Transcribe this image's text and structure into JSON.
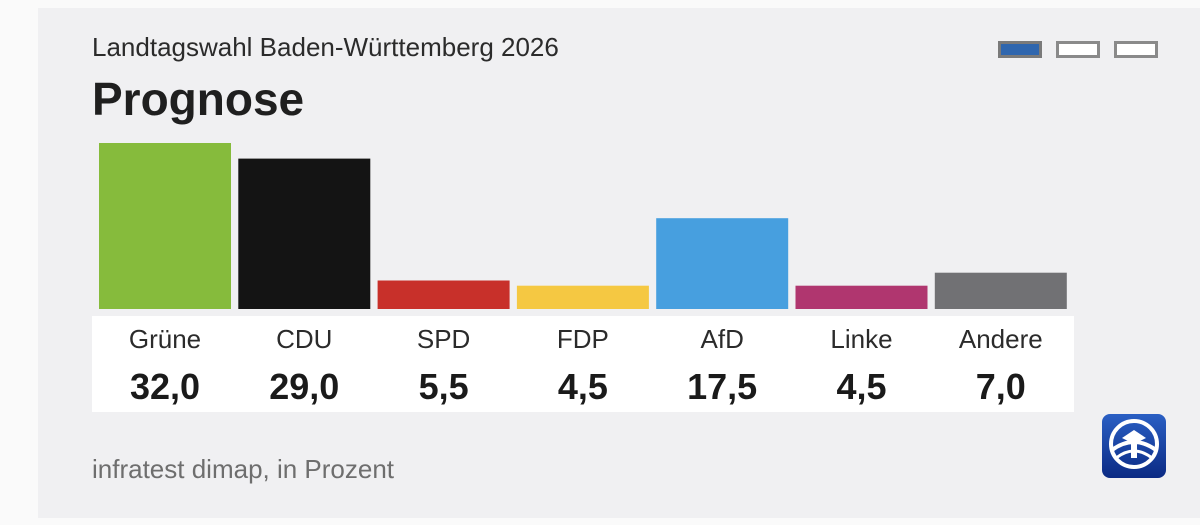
{
  "header": {
    "subtitle": "Landtagswahl Baden-Württemberg 2026",
    "title": "Prognose"
  },
  "pager": {
    "count": 3,
    "active_index": 0
  },
  "footer": {
    "source": "infratest dimap, in Prozent"
  },
  "colors": {
    "background": "#f0f0f2",
    "pager_active": "#2f66ae",
    "logo": "#1e4fb0"
  },
  "logo": {
    "icon": "ard-tagesschau-logo-icon"
  },
  "chart_data": {
    "type": "bar",
    "categories": [
      "Grüne",
      "CDU",
      "SPD",
      "FDP",
      "AfD",
      "Linke",
      "Andere"
    ],
    "values": [
      32.0,
      29.0,
      5.5,
      4.5,
      17.5,
      4.5,
      7.0
    ],
    "value_labels": [
      "32,0",
      "29,0",
      "5,5",
      "4,5",
      "17,5",
      "4,5",
      "7,0"
    ],
    "colors": [
      "#86bb3c",
      "#141414",
      "#c8302a",
      "#f5c842",
      "#479fdf",
      "#b0366f",
      "#717174"
    ],
    "ylim": [
      0,
      32
    ],
    "grid": false,
    "legend": "none"
  }
}
